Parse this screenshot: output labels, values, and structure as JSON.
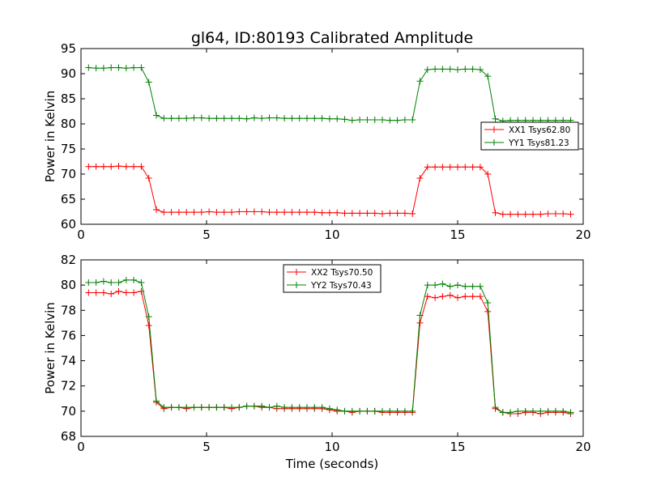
{
  "colors": {
    "red": "#ff0000",
    "green": "#008000"
  },
  "chart_data": [
    {
      "type": "line",
      "title": "gl64, ID:80193 Calibrated Amplitude",
      "xlabel": "",
      "ylabel": "Power in Kelvin",
      "xlim": [
        0,
        20
      ],
      "ylim": [
        60,
        95
      ],
      "xticks": [
        0,
        5,
        10,
        15,
        20
      ],
      "yticks": [
        60,
        65,
        70,
        75,
        80,
        85,
        90,
        95
      ],
      "legend_position": "center-right",
      "x": [
        0.3,
        0.6,
        0.9,
        1.2,
        1.5,
        1.8,
        2.1,
        2.4,
        2.7,
        3.0,
        3.3,
        3.6,
        3.9,
        4.2,
        4.5,
        4.8,
        5.1,
        5.4,
        5.7,
        6.0,
        6.3,
        6.6,
        6.9,
        7.2,
        7.5,
        7.8,
        8.1,
        8.4,
        8.7,
        9.0,
        9.3,
        9.6,
        9.9,
        10.2,
        10.5,
        10.8,
        11.1,
        11.4,
        11.7,
        12.0,
        12.3,
        12.6,
        12.9,
        13.2,
        13.5,
        13.8,
        14.1,
        14.4,
        14.7,
        15.0,
        15.3,
        15.6,
        15.9,
        16.2,
        16.5,
        16.8,
        17.1,
        17.4,
        17.7,
        18.0,
        18.3,
        18.6,
        18.9,
        19.2,
        19.5
      ],
      "series": [
        {
          "name": "XX1 Tsys62.80",
          "color": "#ff0000",
          "values": [
            71.5,
            71.5,
            71.5,
            71.5,
            71.6,
            71.5,
            71.5,
            71.5,
            69.2,
            62.9,
            62.4,
            62.4,
            62.4,
            62.4,
            62.4,
            62.4,
            62.5,
            62.4,
            62.4,
            62.4,
            62.5,
            62.5,
            62.5,
            62.5,
            62.4,
            62.4,
            62.4,
            62.4,
            62.4,
            62.4,
            62.4,
            62.3,
            62.3,
            62.3,
            62.2,
            62.2,
            62.2,
            62.2,
            62.2,
            62.1,
            62.2,
            62.2,
            62.2,
            62.1,
            69.2,
            71.4,
            71.4,
            71.4,
            71.4,
            71.4,
            71.4,
            71.4,
            71.4,
            70.0,
            62.3,
            62.0,
            62.0,
            62.0,
            62.0,
            62.0,
            62.0,
            62.1,
            62.1,
            62.1,
            62.0
          ]
        },
        {
          "name": "YY1 Tsys81.23",
          "color": "#008000",
          "values": [
            91.2,
            91.1,
            91.1,
            91.2,
            91.2,
            91.1,
            91.2,
            91.2,
            88.3,
            81.7,
            81.1,
            81.1,
            81.1,
            81.1,
            81.2,
            81.2,
            81.1,
            81.1,
            81.1,
            81.1,
            81.1,
            81.0,
            81.2,
            81.1,
            81.2,
            81.2,
            81.1,
            81.1,
            81.1,
            81.1,
            81.1,
            81.1,
            81.0,
            81.0,
            80.9,
            80.7,
            80.8,
            80.8,
            80.8,
            80.8,
            80.7,
            80.7,
            80.8,
            80.8,
            88.5,
            90.8,
            90.9,
            90.9,
            90.9,
            90.8,
            90.9,
            90.9,
            90.8,
            89.5,
            81.0,
            80.6,
            80.7,
            80.7,
            80.7,
            80.7,
            80.7,
            80.7,
            80.7,
            80.7,
            80.7
          ]
        }
      ]
    },
    {
      "type": "line",
      "title": "",
      "xlabel": "Time (seconds)",
      "ylabel": "Power in Kelvin",
      "xlim": [
        0,
        20
      ],
      "ylim": [
        68,
        82
      ],
      "xticks": [
        0,
        5,
        10,
        15,
        20
      ],
      "yticks": [
        68,
        70,
        72,
        74,
        76,
        78,
        80,
        82
      ],
      "legend_position": "top-center",
      "x": [
        0.3,
        0.6,
        0.9,
        1.2,
        1.5,
        1.8,
        2.1,
        2.4,
        2.7,
        3.0,
        3.3,
        3.6,
        3.9,
        4.2,
        4.5,
        4.8,
        5.1,
        5.4,
        5.7,
        6.0,
        6.3,
        6.6,
        6.9,
        7.2,
        7.5,
        7.8,
        8.1,
        8.4,
        8.7,
        9.0,
        9.3,
        9.6,
        9.9,
        10.2,
        10.5,
        10.8,
        11.1,
        11.4,
        11.7,
        12.0,
        12.3,
        12.6,
        12.9,
        13.2,
        13.5,
        13.8,
        14.1,
        14.4,
        14.7,
        15.0,
        15.3,
        15.6,
        15.9,
        16.2,
        16.5,
        16.8,
        17.1,
        17.4,
        17.7,
        18.0,
        18.3,
        18.6,
        18.9,
        19.2,
        19.5
      ],
      "series": [
        {
          "name": "XX2 Tsys70.50",
          "color": "#ff0000",
          "values": [
            79.4,
            79.4,
            79.4,
            79.3,
            79.5,
            79.4,
            79.4,
            79.5,
            76.8,
            70.7,
            70.2,
            70.3,
            70.3,
            70.2,
            70.3,
            70.3,
            70.3,
            70.3,
            70.3,
            70.2,
            70.3,
            70.4,
            70.4,
            70.3,
            70.3,
            70.2,
            70.2,
            70.2,
            70.2,
            70.2,
            70.2,
            70.2,
            70.1,
            70.0,
            70.0,
            69.9,
            70.0,
            70.0,
            70.0,
            69.9,
            69.9,
            69.9,
            69.9,
            69.9,
            77.0,
            79.1,
            79.0,
            79.1,
            79.2,
            79.0,
            79.1,
            79.1,
            79.1,
            77.9,
            70.2,
            69.9,
            69.8,
            69.8,
            69.9,
            69.9,
            69.8,
            69.9,
            69.9,
            69.9,
            69.8
          ]
        },
        {
          "name": "YY2 Tsys70.43",
          "color": "#008000",
          "values": [
            80.2,
            80.2,
            80.3,
            80.2,
            80.2,
            80.4,
            80.4,
            80.2,
            77.5,
            70.8,
            70.3,
            70.3,
            70.3,
            70.3,
            70.3,
            70.3,
            70.3,
            70.3,
            70.3,
            70.3,
            70.3,
            70.4,
            70.4,
            70.4,
            70.3,
            70.4,
            70.3,
            70.3,
            70.3,
            70.3,
            70.3,
            70.3,
            70.2,
            70.1,
            70.0,
            70.0,
            70.0,
            70.0,
            70.0,
            70.0,
            70.0,
            70.0,
            70.0,
            70.0,
            77.6,
            80.0,
            80.0,
            80.1,
            79.9,
            80.0,
            79.9,
            79.9,
            79.9,
            78.6,
            70.3,
            69.9,
            69.9,
            70.0,
            70.0,
            70.0,
            70.0,
            70.0,
            70.0,
            70.0,
            69.9
          ]
        }
      ]
    }
  ]
}
